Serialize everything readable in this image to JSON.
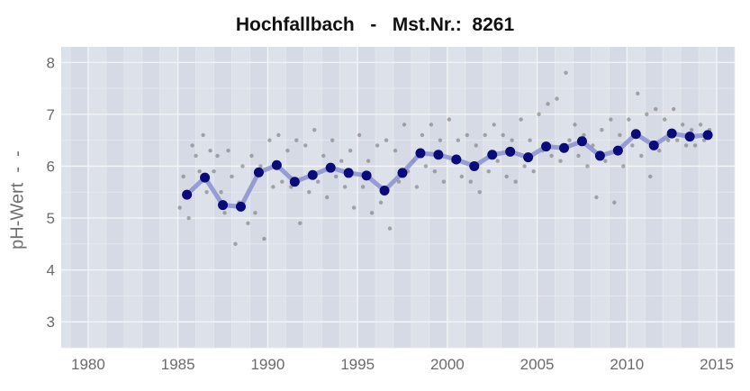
{
  "chart_data": {
    "type": "scatter",
    "title": "Hochfallbach   -   Mst.Nr.:  8261",
    "xlabel": "",
    "ylabel": "pH-Wert  -  -",
    "xlim": [
      1978.5,
      2016
    ],
    "ylim": [
      2.5,
      8.3
    ],
    "x_ticks": [
      1980,
      1985,
      1990,
      1995,
      2000,
      2005,
      2010,
      2015
    ],
    "y_ticks": [
      3,
      4,
      5,
      6,
      7,
      8
    ],
    "grid": true,
    "legend": "none",
    "colors": {
      "background": "#dde1ea",
      "band": "#d6dae4",
      "grid_major": "#f4f5f8",
      "grid_minor": "#e7e9ef",
      "mean_line": "#8a8fd0",
      "mean_point": "#0a0a7a",
      "sample_point": "#6e6e6e"
    },
    "series": [
      {
        "role": "annual-mean",
        "x": [
          1985.5,
          1986.5,
          1987.5,
          1988.5,
          1989.5,
          1990.5,
          1991.5,
          1992.5,
          1993.5,
          1994.5,
          1995.5,
          1996.5,
          1997.5,
          1998.5,
          1999.5,
          2000.5,
          2001.5,
          2002.5,
          2003.5,
          2004.5,
          2005.5,
          2006.5,
          2007.5,
          2008.5,
          2009.5,
          2010.5,
          2011.5,
          2012.5,
          2013.5,
          2014.5
        ],
        "values": [
          5.45,
          5.78,
          5.25,
          5.22,
          5.88,
          6.02,
          5.7,
          5.83,
          5.97,
          5.87,
          5.82,
          5.53,
          5.87,
          6.25,
          6.22,
          6.13,
          6.0,
          6.22,
          6.28,
          6.17,
          6.38,
          6.35,
          6.48,
          6.2,
          6.3,
          6.62,
          6.4,
          6.63,
          6.57,
          6.6
        ]
      },
      {
        "role": "individual-samples",
        "x": [
          1985.1,
          1985.3,
          1985.6,
          1985.8,
          1986.0,
          1986.2,
          1986.4,
          1986.6,
          1986.8,
          1987.0,
          1987.2,
          1987.4,
          1987.6,
          1987.8,
          1988.0,
          1988.2,
          1988.4,
          1988.6,
          1988.9,
          1989.1,
          1989.3,
          1989.6,
          1989.8,
          1990.1,
          1990.3,
          1990.6,
          1990.8,
          1991.1,
          1991.3,
          1991.6,
          1991.8,
          1992.1,
          1992.3,
          1992.6,
          1992.8,
          1993.1,
          1993.3,
          1993.6,
          1993.8,
          1994.1,
          1994.3,
          1994.6,
          1994.8,
          1995.1,
          1995.3,
          1995.6,
          1995.8,
          1996.1,
          1996.3,
          1996.6,
          1996.8,
          1997.1,
          1997.3,
          1997.6,
          1997.8,
          1998.1,
          1998.3,
          1998.6,
          1998.8,
          1999.1,
          1999.3,
          1999.6,
          1999.8,
          2000.1,
          2000.3,
          2000.6,
          2000.8,
          2001.1,
          2001.3,
          2001.6,
          2001.8,
          2002.1,
          2002.3,
          2002.6,
          2002.8,
          2003.1,
          2003.3,
          2003.6,
          2003.8,
          2004.1,
          2004.3,
          2004.6,
          2004.8,
          2005.1,
          2005.3,
          2005.6,
          2005.8,
          2006.1,
          2006.3,
          2006.6,
          2006.8,
          2007.1,
          2007.3,
          2007.6,
          2007.8,
          2008.1,
          2008.3,
          2008.6,
          2008.8,
          2009.1,
          2009.3,
          2009.6,
          2009.8,
          2010.1,
          2010.3,
          2010.6,
          2010.8,
          2011.1,
          2011.3,
          2011.6,
          2011.8,
          2012.1,
          2012.3,
          2012.6,
          2012.8,
          2013.1,
          2013.3,
          2013.6,
          2013.8,
          2014.1,
          2014.3,
          2014.6
        ],
        "values": [
          5.2,
          5.8,
          5.0,
          6.4,
          6.2,
          5.9,
          6.6,
          5.5,
          6.3,
          5.9,
          6.2,
          5.5,
          5.1,
          6.3,
          5.8,
          4.5,
          5.3,
          6.0,
          4.9,
          6.2,
          5.1,
          6.0,
          4.6,
          6.5,
          5.6,
          6.6,
          5.7,
          6.3,
          5.6,
          6.5,
          4.9,
          6.4,
          5.5,
          6.7,
          5.7,
          6.2,
          5.4,
          6.5,
          5.8,
          6.1,
          5.6,
          6.3,
          5.2,
          6.6,
          5.6,
          6.1,
          5.1,
          6.4,
          5.3,
          6.5,
          4.8,
          6.3,
          5.7,
          6.8,
          5.9,
          6.1,
          5.6,
          6.6,
          6.0,
          6.8,
          5.9,
          6.5,
          5.7,
          6.9,
          6.1,
          6.5,
          5.8,
          6.6,
          5.7,
          6.4,
          5.5,
          6.6,
          5.9,
          6.8,
          6.1,
          6.6,
          5.8,
          6.5,
          5.7,
          6.9,
          6.0,
          6.5,
          5.9,
          7.0,
          6.3,
          7.2,
          6.2,
          7.3,
          6.1,
          7.8,
          6.5,
          6.8,
          6.2,
          6.6,
          6.0,
          6.4,
          5.4,
          6.7,
          6.1,
          6.9,
          5.3,
          6.6,
          6.0,
          6.9,
          6.4,
          7.4,
          6.2,
          7.0,
          5.8,
          7.1,
          6.3,
          6.9,
          6.5,
          7.1,
          6.5,
          6.8,
          6.4,
          6.7,
          6.4,
          6.8,
          6.5,
          6.7
        ]
      }
    ]
  }
}
